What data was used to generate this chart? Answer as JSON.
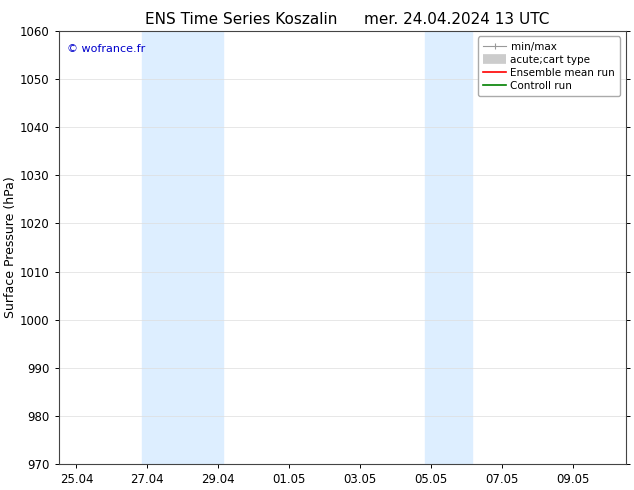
{
  "title": "ENS Time Series Koszalin",
  "title2": "mer. 24.04.2024 13 UTC",
  "ylabel": "Surface Pressure (hPa)",
  "ylim": [
    970,
    1060
  ],
  "yticks": [
    970,
    980,
    990,
    1000,
    1010,
    1020,
    1030,
    1040,
    1050,
    1060
  ],
  "xtick_labels": [
    "25.04",
    "27.04",
    "29.04",
    "01.05",
    "03.05",
    "05.05",
    "07.05",
    "09.05"
  ],
  "xtick_positions": [
    0,
    2,
    4,
    6,
    8,
    10,
    12,
    14
  ],
  "xmin": -0.5,
  "xmax": 15.5,
  "shaded_bands": [
    {
      "xmin": 1.85,
      "xmax": 4.15
    },
    {
      "xmin": 9.85,
      "xmax": 11.15
    }
  ],
  "band_color": "#ddeeff",
  "watermark": "© wofrance.fr",
  "watermark_color": "#0000cc",
  "legend_entries": [
    {
      "label": "min/max",
      "color": "#aaaaaa",
      "lw": 1.0
    },
    {
      "label": "acute;cart type",
      "color": "#cccccc",
      "lw": 6
    },
    {
      "label": "Ensemble mean run",
      "color": "#ff0000",
      "lw": 1.5
    },
    {
      "label": "Controll run",
      "color": "#008000",
      "lw": 1.5
    }
  ],
  "background_color": "#ffffff",
  "grid_color": "#dddddd",
  "title_fontsize": 11,
  "tick_fontsize": 8.5,
  "ylabel_fontsize": 9,
  "legend_fontsize": 7.5
}
